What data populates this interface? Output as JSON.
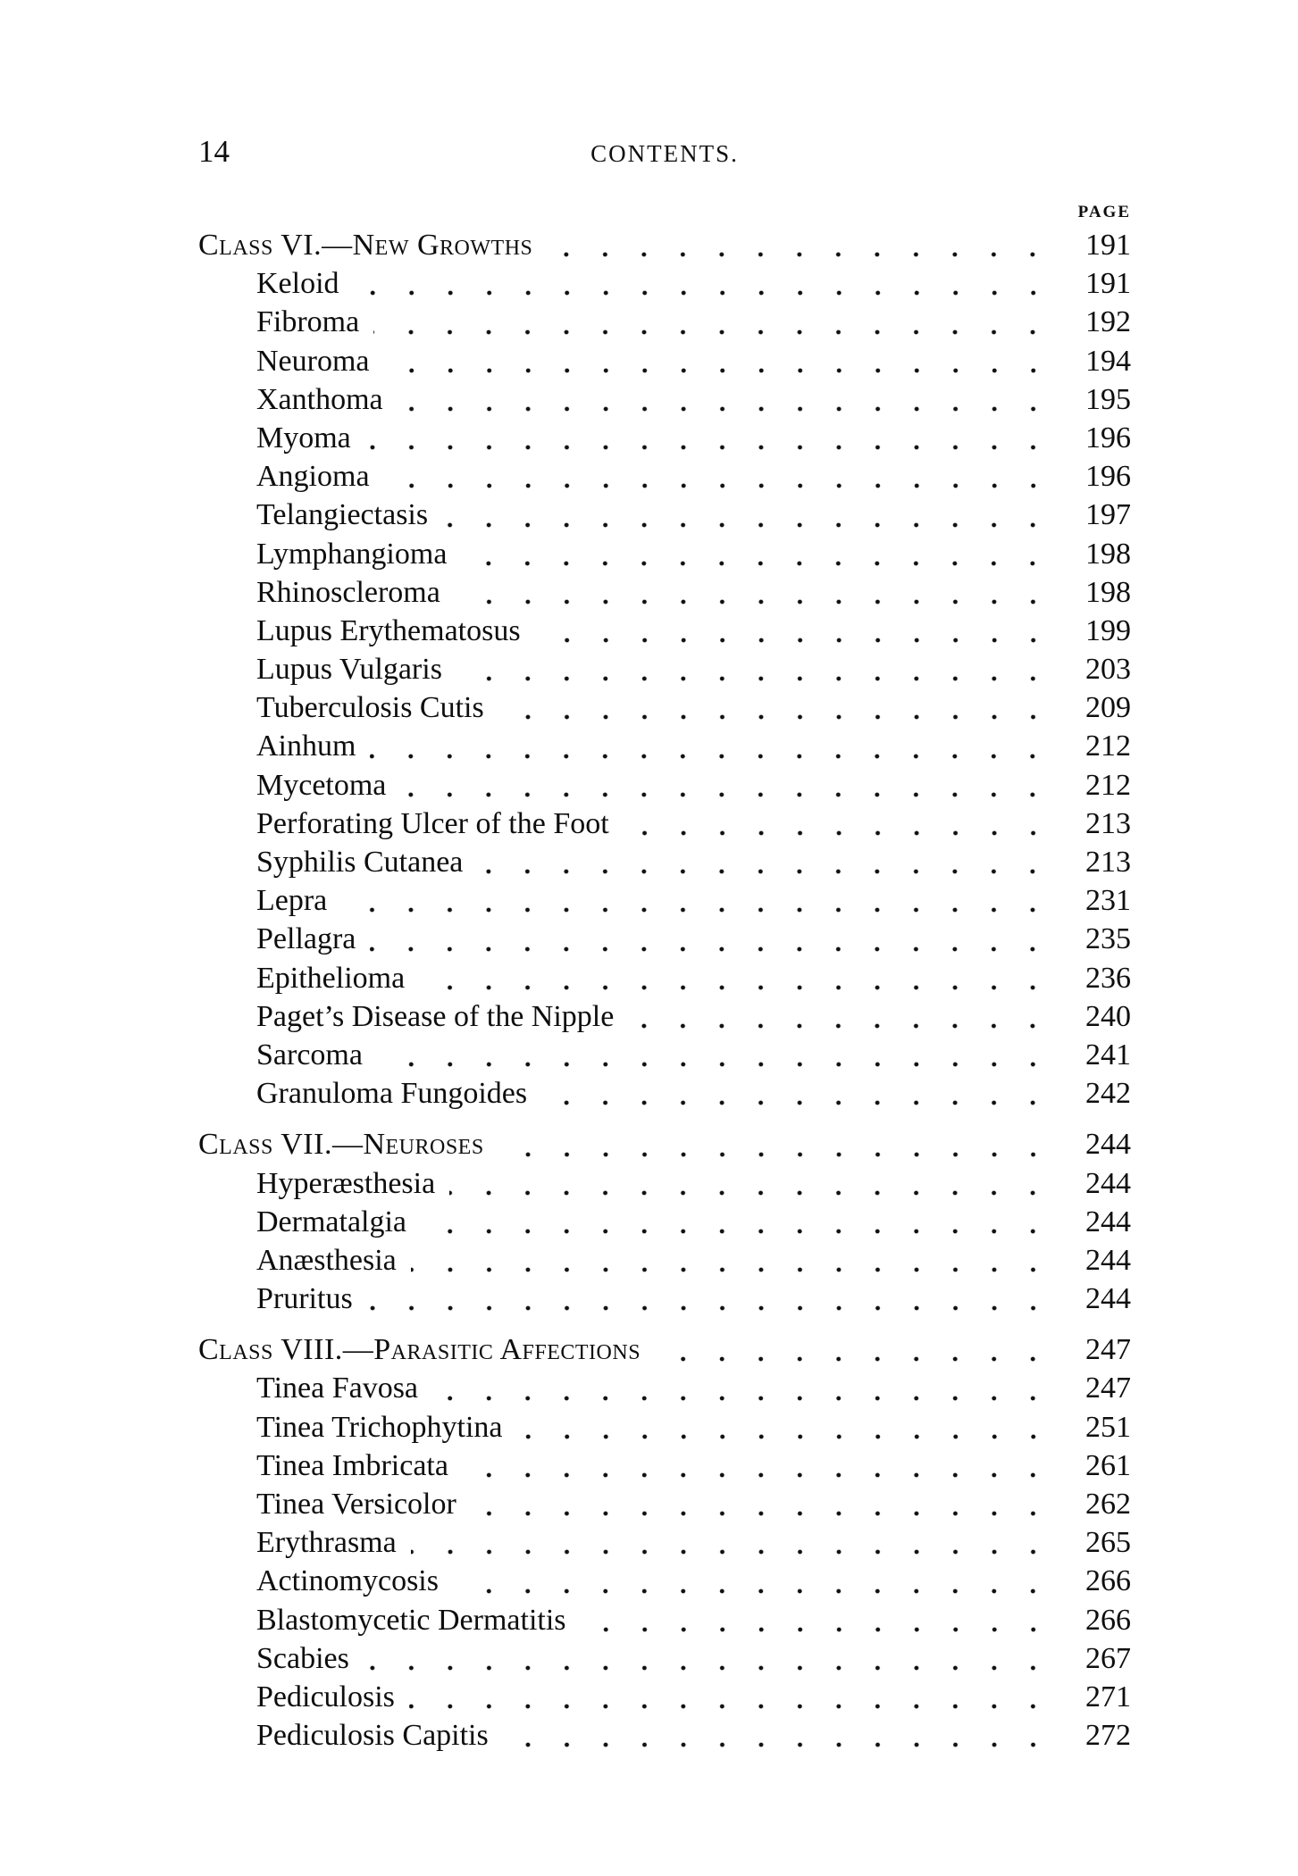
{
  "header": {
    "folio": "14",
    "title": "CONTENTS.",
    "column_label": "PAGE"
  },
  "colors": {
    "ink": "#0e0e0e",
    "paper": "#ffffff"
  },
  "sections": [
    {
      "heading": "Class VI.—New Growths",
      "page": "191",
      "entries": [
        {
          "label": "Keloid",
          "page": "191"
        },
        {
          "label": "Fibroma",
          "page": "192"
        },
        {
          "label": "Neuroma",
          "page": "194"
        },
        {
          "label": "Xanthoma",
          "page": "195"
        },
        {
          "label": "Myoma",
          "page": "196"
        },
        {
          "label": "Angioma",
          "page": "196"
        },
        {
          "label": "Telangiectasis",
          "page": "197"
        },
        {
          "label": "Lymphangioma",
          "page": "198"
        },
        {
          "label": "Rhinoscleroma",
          "page": "198"
        },
        {
          "label": "Lupus Erythematosus",
          "page": "199"
        },
        {
          "label": "Lupus Vulgaris",
          "page": "203"
        },
        {
          "label": "Tuberculosis Cutis",
          "page": "209"
        },
        {
          "label": "Ainhum",
          "page": "212"
        },
        {
          "label": "Mycetoma",
          "page": "212"
        },
        {
          "label": "Perforating Ulcer of the Foot",
          "page": "213"
        },
        {
          "label": "Syphilis Cutanea",
          "page": "213"
        },
        {
          "label": "Lepra",
          "page": "231"
        },
        {
          "label": "Pellagra",
          "page": "235"
        },
        {
          "label": "Epithelioma",
          "page": "236"
        },
        {
          "label": "Paget’s Disease of the Nipple",
          "page": "240"
        },
        {
          "label": "Sarcoma",
          "page": "241"
        },
        {
          "label": "Granuloma Fungoides",
          "page": "242"
        }
      ]
    },
    {
      "heading": "Class VII.—Neuroses",
      "page": "244",
      "entries": [
        {
          "label": "Hyperæsthesia",
          "page": "244"
        },
        {
          "label": "Dermatalgia",
          "page": "244"
        },
        {
          "label": "Anæsthesia",
          "page": "244"
        },
        {
          "label": "Pruritus",
          "page": "244"
        }
      ]
    },
    {
      "heading": "Class VIII.—Parasitic Affections",
      "page": "247",
      "entries": [
        {
          "label": "Tinea Favosa",
          "page": "247"
        },
        {
          "label": "Tinea Trichophytina",
          "page": "251"
        },
        {
          "label": "Tinea Imbricata",
          "page": "261"
        },
        {
          "label": "Tinea Versicolor",
          "page": "262"
        },
        {
          "label": "Erythrasma",
          "page": "265"
        },
        {
          "label": "Actinomycosis",
          "page": "266"
        },
        {
          "label": "Blastomycetic Dermatitis",
          "page": "266"
        },
        {
          "label": "Scabies",
          "page": "267"
        },
        {
          "label": "Pediculosis",
          "page": "271"
        },
        {
          "label": "Pediculosis Capitis",
          "page": "272"
        }
      ]
    }
  ]
}
